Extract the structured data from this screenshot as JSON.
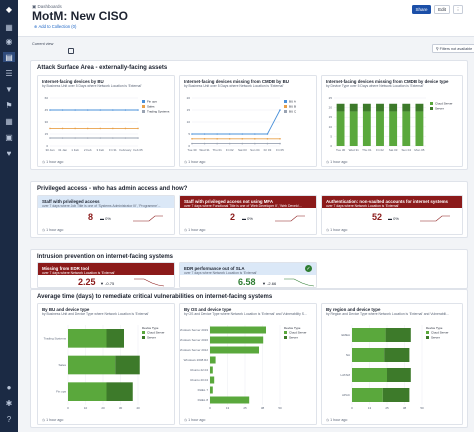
{
  "nav": {
    "icons": [
      "dashboard-icon",
      "eye-icon",
      "grid-icon",
      "list-icon",
      "trophy-icon",
      "flag-icon",
      "table-icon",
      "users-icon",
      "heart-icon",
      "user-icon",
      "gear-icon",
      "help-icon"
    ]
  },
  "header": {
    "breadcrumb": "Dashboards",
    "title": "MotM: New CISO",
    "add_collection": "Add to Collection (0)",
    "share_label": "Share",
    "edit_label": "Edit",
    "more_label": "⋮",
    "current_view_label": "Current view",
    "filters_label": "Filters not available"
  },
  "sections": {
    "attack_surface": "Attack Surface Area - externally-facing assets",
    "privileged": "Privileged access - who has admin access and how?",
    "intrusion": "Intrusion prevention on internet-facing systems",
    "remediate": "Average time (days) to remediate critical vulnerabilities on internet-facing systems"
  },
  "cards": {
    "c1": {
      "title": "Internet-facing devices by BU",
      "sub": "by Business Unit over 5 Days where Network Location is 'External'",
      "foot": "1 hour ago"
    },
    "c2": {
      "title": "Internet-facing devices missing from CMDB by BU",
      "sub": "by Business Unit over 5 Days where Network Location is 'External'",
      "foot": "1 hour ago"
    },
    "c3": {
      "title": "Internet-facing devices missing from CMDB by device type",
      "sub": "by Device Type over 5 Days where Network Location is 'External'",
      "foot": "1 hour ago"
    },
    "p1": {
      "title": "Staff with privileged access",
      "sub": "over 7 days where Job Title is one of 'Systems Administrator III', 'Programme'...",
      "kpi": "8",
      "trend": "0%",
      "foot": "1 hour ago"
    },
    "p2": {
      "title": "Staff with privileged access not using MFA",
      "sub": "over 7 days where Functional Title is one of 'Web Developer II', 'Web Develo'...",
      "kpi": "2",
      "trend": "0%",
      "foot": "1 hour ago"
    },
    "p3": {
      "title": "Authentication: non-vaulted accounts for internet systems",
      "sub": "over 7 days where Network Location is 'External'",
      "kpi": "52",
      "trend": "0%",
      "foot": "1 hour ago"
    },
    "i1": {
      "title": "Missing from EDR tool",
      "sub": "over 7 days where Network Location is 'External'",
      "kpi": "2.25",
      "trend": "-0.75",
      "foot": "1 hour ago"
    },
    "i2": {
      "title": "EDR performance out of SLA",
      "sub": "over 7 days where Network Location is 'External'",
      "kpi": "6.58",
      "trend": "-2.66",
      "foot": "1 hour ago"
    },
    "r1": {
      "title": "By BU and device type",
      "sub": "by Business Unit and Device Type where Network Location is 'External'",
      "foot": "1 hour ago"
    },
    "r2": {
      "title": "By OS and device type",
      "sub": "by OS and Device Type where Network Location is 'External' and Vulnerability S...",
      "foot": "1 hour ago"
    },
    "r3": {
      "title": "By region and device type",
      "sub": "by Region and Device Type where Network Location is 'External' and Vulnerabili...",
      "foot": "1 hour ago"
    }
  },
  "colors": {
    "blue": "#4a90d9",
    "orange": "#e8a04a",
    "gray": "#9aa3b2",
    "green": "#5aa83c",
    "darkgreen": "#3d7a2a",
    "red": "#8b1a1a"
  },
  "chart_data": [
    {
      "type": "line",
      "title": "Internet-facing devices by BU",
      "x": [
        "30 Jan",
        "31 Jan",
        "1 Feb",
        "2 Feb",
        "3 Feb",
        "Fri 31",
        "February",
        "Feb 05"
      ],
      "series": [
        {
          "name": "Fin ops",
          "values": [
            45,
            45,
            45,
            45,
            45,
            45,
            45,
            45
          ]
        },
        {
          "name": "Sales",
          "values": [
            22,
            22,
            22,
            22,
            22,
            22,
            22,
            22
          ]
        },
        {
          "name": "Trading Systems",
          "values": [
            10,
            10,
            10,
            10,
            10,
            10,
            10,
            10
          ]
        }
      ],
      "ylim": [
        0,
        60
      ]
    },
    {
      "type": "line",
      "title": "Internet-facing devices missing from CMDB by BU",
      "x": [
        "Tue 30",
        "Wed 31",
        "Thu 01",
        "Fri 02",
        "Sat 03",
        "Sun 04",
        "Fri 03",
        "Fri 05"
      ],
      "series": [
        {
          "name": "BU A",
          "values": [
            5,
            5,
            5,
            5,
            5,
            5,
            5,
            15
          ]
        },
        {
          "name": "BU B",
          "values": [
            3,
            3,
            3,
            3,
            3,
            3,
            3,
            3
          ]
        },
        {
          "name": "BU C",
          "values": [
            1,
            1,
            1,
            1,
            1,
            1,
            1,
            1
          ]
        }
      ],
      "ylim": [
        0,
        20
      ]
    },
    {
      "type": "bar",
      "title": "Internet-facing devices missing from CMDB by device type",
      "categories": [
        "Tue 30",
        "Wed 31",
        "Thu 01",
        "Fri 02",
        "Sat 03",
        "Sun 04",
        "Mon 05"
      ],
      "series": [
        {
          "name": "Cloud Server",
          "values": [
            18,
            18,
            18,
            18,
            18,
            18,
            18
          ]
        },
        {
          "name": "Server",
          "values": [
            4,
            4,
            4,
            4,
            4,
            4,
            4
          ]
        }
      ],
      "ylim": [
        0,
        25
      ]
    },
    {
      "type": "bar",
      "title": "By BU and device type",
      "categories": [
        "Trading Systems",
        "Sales",
        "Fin ops"
      ],
      "series": [
        {
          "name": "Cloud Server",
          "values": [
            22,
            27,
            22
          ]
        },
        {
          "name": "Server",
          "values": [
            10,
            14,
            15
          ]
        }
      ],
      "xlim": [
        0,
        40
      ]
    },
    {
      "type": "bar",
      "title": "By OS and device type",
      "categories": [
        "Windows Server 2019",
        "Windows Server 2016",
        "Windows Server 2012",
        "Windows 2008 R2",
        "Ubuntu 22.04",
        "Ubuntu 20.04",
        "RHEL 7",
        "RHEL 8"
      ],
      "series": [
        {
          "name": "Cloud Server",
          "values": [
            40,
            38,
            35,
            4,
            2,
            3,
            2,
            28
          ]
        },
        {
          "name": "Server",
          "values": [
            0,
            0,
            0,
            0,
            0,
            0,
            0,
            0
          ]
        }
      ],
      "xlim": [
        0,
        50
      ]
    },
    {
      "type": "bar",
      "title": "By region and device type",
      "categories": [
        "EMEA",
        "NA",
        "LATAM",
        "APAC"
      ],
      "series": [
        {
          "name": "Cloud Server",
          "values": [
            24,
            23,
            25,
            22
          ]
        },
        {
          "name": "Server",
          "values": [
            18,
            18,
            17,
            19
          ]
        }
      ],
      "xlim": [
        0,
        50
      ]
    }
  ]
}
